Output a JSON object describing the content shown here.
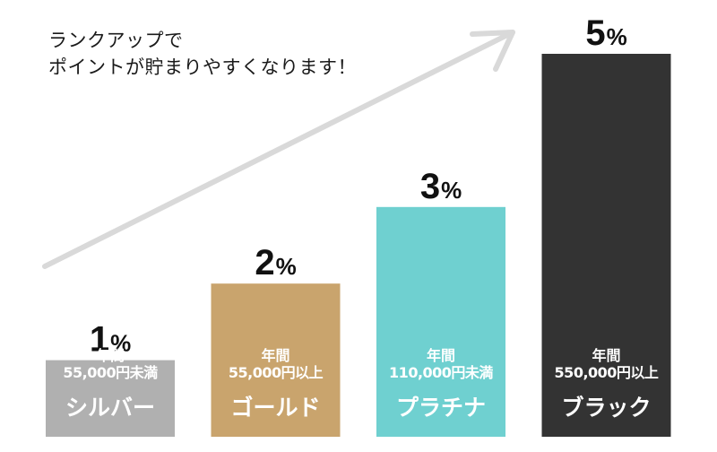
{
  "headline": {
    "line1": "ランクアップで",
    "line2": "ポイントが貯まりやすくなります！"
  },
  "colors": {
    "arrow": "#d9d9d9",
    "label_text": "#ffffff",
    "percent_text": "#111111"
  },
  "chart_data": {
    "type": "bar",
    "categories": [
      "シルバー",
      "ゴールド",
      "プラチナ",
      "ブラック"
    ],
    "values": [
      1,
      2,
      3,
      5
    ],
    "value_labels": [
      {
        "number": "1",
        "unit": "%"
      },
      {
        "number": "2",
        "unit": "%"
      },
      {
        "number": "3",
        "unit": "%"
      },
      {
        "number": "5",
        "unit": "%"
      }
    ],
    "conditions": [
      {
        "line1": "年間",
        "line2": "55,000円未満"
      },
      {
        "line1": "年間",
        "line2": "55,000円以上"
      },
      {
        "line1": "年間",
        "line2": "110,000円未満"
      },
      {
        "line1": "年間",
        "line2": "550,000円以上"
      }
    ],
    "bar_colors": [
      "#b0b0b0",
      "#c9a46d",
      "#6fd0d0",
      "#333333"
    ],
    "ylim": [
      0,
      5
    ],
    "grid": false,
    "legend": "none",
    "xlabel": "",
    "ylabel": ""
  }
}
